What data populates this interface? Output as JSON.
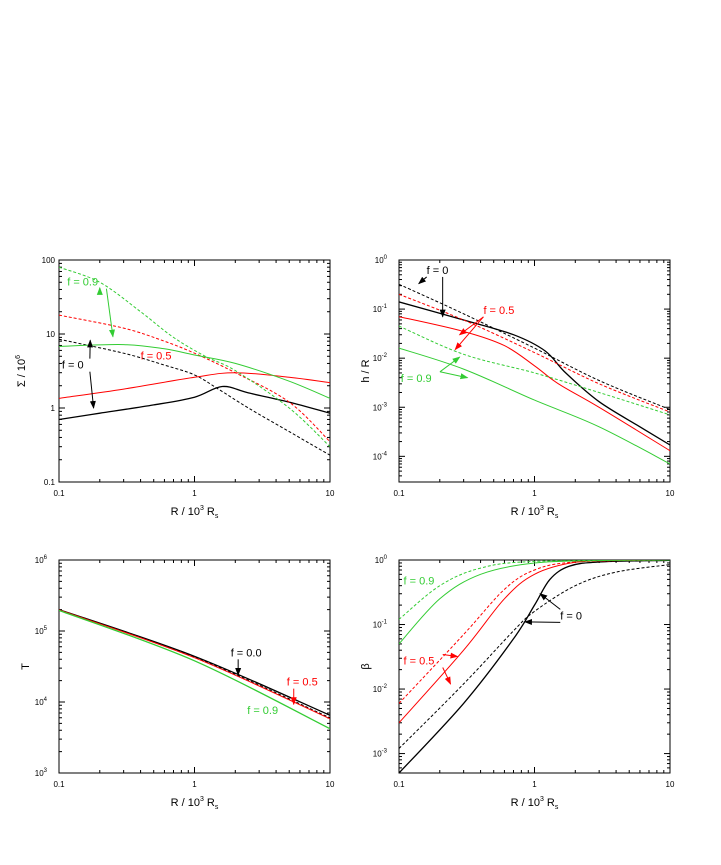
{
  "colors": {
    "black": "#000000",
    "red": "#ff0000",
    "green": "#33cc33"
  },
  "xlabel": "R / 10",
  "xlabel_sup": "3",
  "xlabel_tail": " R",
  "xlabel_sub": "s",
  "chart_data": [
    {
      "id": "sigma",
      "type": "line",
      "scale": "loglog",
      "ylabel": "Σ / 10",
      "ylabel_sup": "6",
      "xlim": [
        0.1,
        10
      ],
      "ylim": [
        0.1,
        100
      ],
      "xticks": [
        {
          "v": 0.1,
          "t": "0.1"
        },
        {
          "v": 1,
          "t": "1"
        },
        {
          "v": 10,
          "t": "10"
        }
      ],
      "yticks": [
        {
          "v": 0.1,
          "t": "0.1"
        },
        {
          "v": 1,
          "t": "1"
        },
        {
          "v": 10,
          "t": "10"
        },
        {
          "v": 100,
          "t": "100"
        }
      ],
      "series": [
        {
          "name": "f = 0 solid",
          "color": "black",
          "dash": false,
          "width": 1.3,
          "points": [
            [
              0.1,
              0.7
            ],
            [
              0.2,
              0.85
            ],
            [
              0.5,
              1.1
            ],
            [
              1,
              1.4
            ],
            [
              1.6,
              1.95
            ],
            [
              2.5,
              1.6
            ],
            [
              5,
              1.2
            ],
            [
              10,
              0.85
            ]
          ]
        },
        {
          "name": "f = 0 dotted",
          "color": "black",
          "dash": true,
          "width": 1,
          "points": [
            [
              0.1,
              8.5
            ],
            [
              0.3,
              5.5
            ],
            [
              0.6,
              3.8
            ],
            [
              1,
              2.8
            ],
            [
              1.5,
              1.8
            ],
            [
              2.5,
              1.0
            ],
            [
              5,
              0.48
            ],
            [
              10,
              0.23
            ]
          ]
        },
        {
          "name": "f = 0.5 solid",
          "color": "red",
          "dash": false,
          "width": 1,
          "points": [
            [
              0.1,
              1.35
            ],
            [
              0.3,
              1.8
            ],
            [
              1,
              2.6
            ],
            [
              2,
              3.0
            ],
            [
              5,
              2.6
            ],
            [
              10,
              2.2
            ]
          ]
        },
        {
          "name": "f = 0.5 dotted",
          "color": "red",
          "dash": true,
          "width": 1,
          "points": [
            [
              0.1,
              18
            ],
            [
              0.3,
              12
            ],
            [
              0.6,
              8
            ],
            [
              1,
              5.5
            ],
            [
              2,
              3.0
            ],
            [
              5,
              1.2
            ],
            [
              10,
              0.35
            ]
          ]
        },
        {
          "name": "f = 0.9 solid",
          "color": "green",
          "dash": false,
          "width": 1,
          "points": [
            [
              0.1,
              6.8
            ],
            [
              0.3,
              7.2
            ],
            [
              0.6,
              6.3
            ],
            [
              1,
              5.2
            ],
            [
              2,
              4.0
            ],
            [
              5,
              2.3
            ],
            [
              10,
              1.35
            ]
          ]
        },
        {
          "name": "f = 0.9 dotted",
          "color": "green",
          "dash": true,
          "width": 1,
          "points": [
            [
              0.1,
              80
            ],
            [
              0.2,
              50
            ],
            [
              0.4,
              20
            ],
            [
              0.7,
              9
            ],
            [
              1.2,
              5
            ],
            [
              2,
              3.2
            ],
            [
              5,
              1.0
            ],
            [
              10,
              0.3
            ]
          ]
        }
      ],
      "annotations": [
        {
          "text": "f = 0.9",
          "color": "green",
          "at": [
            0.115,
            45
          ],
          "arrows": [
            [
              0.2,
              42
            ],
            [
              0.25,
              9.2
            ]
          ]
        },
        {
          "text": "f = 0.5",
          "color": "red",
          "at": [
            0.4,
            4.5
          ],
          "arrows": []
        },
        {
          "text": "f = 0",
          "color": "black",
          "at": [
            0.105,
            3.4
          ],
          "arrows": [
            [
              0.17,
              8.2
            ],
            [
              0.18,
              1.0
            ]
          ]
        }
      ]
    },
    {
      "id": "hR",
      "type": "line",
      "scale": "loglog",
      "ylabel": "h / R",
      "xlim": [
        0.1,
        10
      ],
      "ylim": [
        3e-05,
        1
      ],
      "xticks": [
        {
          "v": 0.1,
          "t": "0.1"
        },
        {
          "v": 1,
          "t": "1"
        },
        {
          "v": 10,
          "t": "10"
        }
      ],
      "yticks": [
        {
          "v": 0.0001,
          "t": "10",
          "e": "-4"
        },
        {
          "v": 0.001,
          "t": "10",
          "e": "-3"
        },
        {
          "v": 0.01,
          "t": "10",
          "e": "-2"
        },
        {
          "v": 0.1,
          "t": "10",
          "e": "-1"
        },
        {
          "v": 1,
          "t": "10",
          "e": "0"
        }
      ],
      "series": [
        {
          "name": "f = 0 solid",
          "color": "black",
          "dash": false,
          "width": 1.3,
          "points": [
            [
              0.1,
              0.14
            ],
            [
              0.3,
              0.06
            ],
            [
              0.7,
              0.03
            ],
            [
              1.2,
              0.014
            ],
            [
              1.7,
              0.005
            ],
            [
              3,
              0.0013
            ],
            [
              6,
              0.0004
            ],
            [
              10,
              0.00017
            ]
          ]
        },
        {
          "name": "f = 0 dotted",
          "color": "black",
          "dash": true,
          "width": 1,
          "points": [
            [
              0.1,
              0.32
            ],
            [
              0.3,
              0.08
            ],
            [
              1,
              0.016
            ],
            [
              3,
              0.0035
            ],
            [
              10,
              0.0009
            ]
          ]
        },
        {
          "name": "f = 0.5 solid",
          "color": "red",
          "dash": false,
          "width": 1,
          "points": [
            [
              0.1,
              0.07
            ],
            [
              0.3,
              0.035
            ],
            [
              0.6,
              0.018
            ],
            [
              1,
              0.007
            ],
            [
              1.5,
              0.003
            ],
            [
              3,
              0.001
            ],
            [
              10,
              0.00013
            ]
          ]
        },
        {
          "name": "f = 0.5 dotted",
          "color": "red",
          "dash": true,
          "width": 1,
          "points": [
            [
              0.1,
              0.2
            ],
            [
              0.3,
              0.06
            ],
            [
              1,
              0.013
            ],
            [
              3,
              0.003
            ],
            [
              10,
              0.0008
            ]
          ]
        },
        {
          "name": "f = 0.9 solid",
          "color": "green",
          "dash": false,
          "width": 1,
          "points": [
            [
              0.1,
              0.016
            ],
            [
              0.3,
              0.006
            ],
            [
              1,
              0.0014
            ],
            [
              3,
              0.0004
            ],
            [
              10,
              7e-05
            ]
          ]
        },
        {
          "name": "f = 0.9 dotted",
          "color": "green",
          "dash": true,
          "width": 1,
          "points": [
            [
              0.1,
              0.045
            ],
            [
              0.3,
              0.012
            ],
            [
              1,
              0.005
            ],
            [
              3,
              0.002
            ],
            [
              10,
              0.0007
            ]
          ]
        }
      ],
      "annotations": [
        {
          "text": "f = 0",
          "color": "black",
          "at": [
            0.16,
            0.52
          ],
          "arrows": [
            [
              0.14,
              0.33
            ],
            [
              0.21,
              0.07
            ]
          ]
        },
        {
          "text": "f = 0.5",
          "color": "red",
          "at": [
            0.42,
            0.08
          ],
          "arrows": [
            [
              0.28,
              0.03
            ],
            [
              0.26,
              0.015
            ]
          ]
        },
        {
          "text": "f = 0.9",
          "color": "green",
          "at": [
            0.103,
            0.0033
          ],
          "arrows": [
            [
              0.28,
              0.0105
            ],
            [
              0.32,
              0.004
            ]
          ]
        }
      ]
    },
    {
      "id": "T",
      "type": "line",
      "scale": "loglog",
      "ylabel": "T",
      "xlim": [
        0.1,
        10
      ],
      "ylim": [
        1000,
        1000000
      ],
      "xticks": [
        {
          "v": 0.1,
          "t": "0.1"
        },
        {
          "v": 1,
          "t": "1"
        },
        {
          "v": 10,
          "t": "10"
        }
      ],
      "yticks": [
        {
          "v": 1000,
          "t": "10",
          "e": "3"
        },
        {
          "v": 10000,
          "t": "10",
          "e": "4"
        },
        {
          "v": 100000,
          "t": "10",
          "e": "5"
        },
        {
          "v": 1000000,
          "t": "10",
          "e": "6"
        }
      ],
      "series": [
        {
          "name": "f = 0.0 solid",
          "color": "black",
          "dash": false,
          "width": 1.3,
          "points": [
            [
              0.1,
              200000
            ],
            [
              1,
              44000
            ],
            [
              10,
              6500
            ]
          ]
        },
        {
          "name": "f = 0.0 dotted",
          "color": "black",
          "dash": true,
          "width": 1,
          "points": [
            [
              0.1,
              200000
            ],
            [
              1,
              43000
            ],
            [
              10,
              6000
            ]
          ]
        },
        {
          "name": "f = 0.5 solid",
          "color": "red",
          "dash": false,
          "width": 1,
          "points": [
            [
              0.1,
              198000
            ],
            [
              1,
              42000
            ],
            [
              10,
              5800
            ]
          ]
        },
        {
          "name": "f = 0.9 solid",
          "color": "green",
          "dash": false,
          "width": 1.3,
          "points": [
            [
              0.1,
              195000
            ],
            [
              1,
              38000
            ],
            [
              10,
              4200
            ]
          ]
        }
      ],
      "annotations": [
        {
          "text": "f = 0.0",
          "color": "black",
          "at": [
            1.85,
            44000
          ],
          "arrows": [
            [
              2.1,
              24000
            ]
          ]
        },
        {
          "text": "f = 0.5",
          "color": "red",
          "at": [
            4.8,
            17000
          ],
          "arrows": [
            [
              5.4,
              9300
            ]
          ]
        },
        {
          "text": "f = 0.9",
          "color": "green",
          "at": [
            2.45,
            6800
          ],
          "arrows": []
        }
      ]
    },
    {
      "id": "beta",
      "type": "line",
      "scale": "loglog",
      "ylabel": "β",
      "xlim": [
        0.1,
        10
      ],
      "ylim": [
        0.0005,
        1
      ],
      "xticks": [
        {
          "v": 0.1,
          "t": "0.1"
        },
        {
          "v": 1,
          "t": "1"
        },
        {
          "v": 10,
          "t": "10"
        }
      ],
      "yticks": [
        {
          "v": 0.001,
          "t": "10",
          "e": "-3"
        },
        {
          "v": 0.01,
          "t": "10",
          "e": "-2"
        },
        {
          "v": 0.1,
          "t": "10",
          "e": "-1"
        },
        {
          "v": 1,
          "t": "10",
          "e": "0"
        }
      ],
      "series": [
        {
          "name": "f = 0 solid",
          "color": "black",
          "dash": false,
          "width": 1.3,
          "points": [
            [
              0.1,
              0.0005
            ],
            [
              0.3,
              0.006
            ],
            [
              0.7,
              0.06
            ],
            [
              1,
              0.2
            ],
            [
              1.3,
              0.5
            ],
            [
              1.8,
              0.8
            ],
            [
              3,
              0.93
            ],
            [
              10,
              0.99
            ]
          ]
        },
        {
          "name": "f = 0 dotted",
          "color": "black",
          "dash": true,
          "width": 1,
          "points": [
            [
              0.1,
              0.0012
            ],
            [
              0.3,
              0.012
            ],
            [
              0.7,
              0.08
            ],
            [
              1,
              0.16
            ],
            [
              2,
              0.4
            ],
            [
              4,
              0.65
            ],
            [
              10,
              0.85
            ]
          ]
        },
        {
          "name": "f = 0.5 solid",
          "color": "red",
          "dash": false,
          "width": 1,
          "points": [
            [
              0.1,
              0.003
            ],
            [
              0.3,
              0.04
            ],
            [
              0.6,
              0.25
            ],
            [
              1,
              0.6
            ],
            [
              2,
              0.92
            ],
            [
              5,
              0.99
            ],
            [
              10,
              1.0
            ]
          ]
        },
        {
          "name": "f = 0.5 dotted",
          "color": "red",
          "dash": true,
          "width": 1,
          "points": [
            [
              0.1,
              0.006
            ],
            [
              0.3,
              0.07
            ],
            [
              0.6,
              0.35
            ],
            [
              1,
              0.7
            ],
            [
              2,
              0.93
            ],
            [
              10,
              1.0
            ]
          ]
        },
        {
          "name": "f = 0.9 solid",
          "color": "green",
          "dash": false,
          "width": 1,
          "points": [
            [
              0.1,
              0.05
            ],
            [
              0.2,
              0.25
            ],
            [
              0.4,
              0.6
            ],
            [
              1,
              0.9
            ],
            [
              3,
              0.98
            ],
            [
              10,
              1.0
            ]
          ]
        },
        {
          "name": "f = 0.9 dotted",
          "color": "green",
          "dash": true,
          "width": 1,
          "points": [
            [
              0.1,
              0.12
            ],
            [
              0.2,
              0.4
            ],
            [
              0.4,
              0.75
            ],
            [
              1,
              0.95
            ],
            [
              10,
              1.0
            ]
          ]
        }
      ],
      "annotations": [
        {
          "text": "f = 0.9",
          "color": "green",
          "at": [
            0.108,
            0.42
          ],
          "arrows": []
        },
        {
          "text": "f = 0.5",
          "color": "red",
          "at": [
            0.108,
            0.024
          ],
          "arrows": [
            [
              0.27,
              0.032
            ],
            [
              0.24,
              0.012
            ]
          ]
        },
        {
          "text": "f = 0",
          "color": "black",
          "at": [
            1.55,
            0.12
          ],
          "arrows": [
            [
              1.1,
              0.3
            ],
            [
              0.85,
              0.11
            ]
          ]
        }
      ]
    }
  ]
}
